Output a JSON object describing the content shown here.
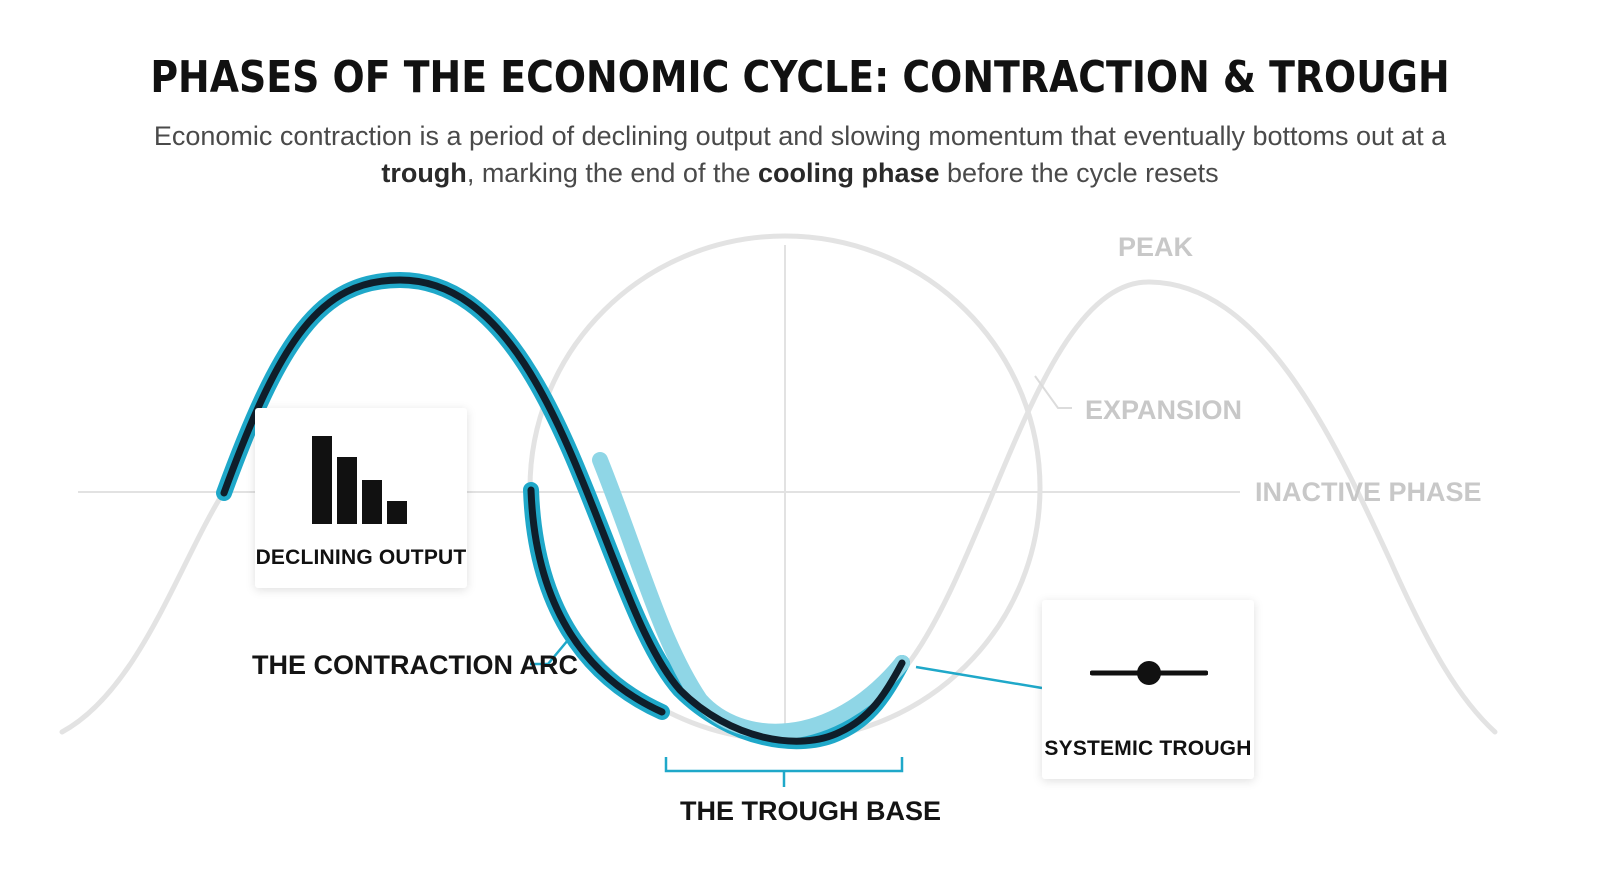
{
  "header": {
    "title": "PHASES OF THE ECONOMIC CYCLE: CONTRACTION & TROUGH",
    "subtitle_part1": "Economic contraction is a period of declining output and slowing momentum that eventually bottoms out at a ",
    "subtitle_bold1": "trough",
    "subtitle_part2": ", marking the end of the ",
    "subtitle_bold2": "cooling phase",
    "subtitle_part3": " before the cycle resets"
  },
  "labels": {
    "peak": "PEAK",
    "expansion": "EXPANSION",
    "inactive_phase": "INACTIVE PHASE",
    "contraction_arc": "THE CONTRACTION ARC",
    "trough_base": "THE TROUGH BASE"
  },
  "cards": {
    "declining_output": {
      "label": "DECLINING OUTPUT",
      "icon": "bar-chart-declining-icon"
    },
    "systemic_trough": {
      "label": "SYSTEMIC TROUGH",
      "icon": "slider-knob-icon"
    }
  },
  "colors": {
    "accent": "#1fa8c9",
    "accent_light": "#8fd6e6",
    "curve_dark": "#0f1e2a",
    "faded_curve": "#e3e3e3",
    "faded_text": "#c8c8c8",
    "text_dark": "#111111"
  }
}
